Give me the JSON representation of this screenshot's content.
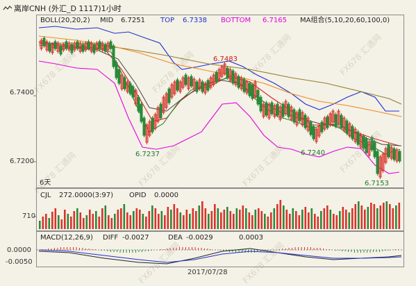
{
  "header": {
    "symbol_icon": "chart-pattern-icon",
    "title": "离岸CNH (外汇_D 1117)1小时"
  },
  "indicators": {
    "boll_label": "BOLL(20,20,2)",
    "mid_label": "MID",
    "mid_value": "6.7251",
    "top_label": "TOP",
    "top_value": "6.7338",
    "bottom_label": "BOTTOM",
    "bottom_value": "6.7165",
    "ma_label": "MA组合(5,10,20,60,100,0)"
  },
  "price_axis": {
    "labels": [
      "6.7400",
      "6.7200"
    ]
  },
  "annotations": {
    "high_label": "6.7483",
    "low1_label": "6.7237",
    "low2_label": "6.7240",
    "low3_label": "6.7153",
    "period_label": "6天"
  },
  "volume_panel": {
    "label": "CJL",
    "value": "272.0000(3:97)",
    "opid_label": "OPID",
    "opid_value": "0.0000",
    "axis_label": "710"
  },
  "macd_panel": {
    "label": "MACD(12,26,9)",
    "diff_label": "DIFF",
    "diff_value": "-0.0027",
    "dea_label": "DEA",
    "dea_value": "-0.0029",
    "macd_value": "0.0003",
    "axis_labels": [
      "0.0000",
      "-0.0050"
    ]
  },
  "date_label": "2017/07/28",
  "watermark_text": "FX678 汇通网",
  "colors": {
    "background": "#f4f1e6",
    "up_candle": "#d9332b",
    "down_candle": "#2a8a3a",
    "boll_mid": "#444444",
    "boll_top": "#1e2fd0",
    "boll_bottom": "#e000e0",
    "ma_orange": "#f08a1e",
    "ma_olive": "#8f7e2e",
    "ma_red": "#d92020",
    "ma_green": "#2e8b2e",
    "label_green": "#1a7a2a",
    "label_red": "#d01818"
  }
}
